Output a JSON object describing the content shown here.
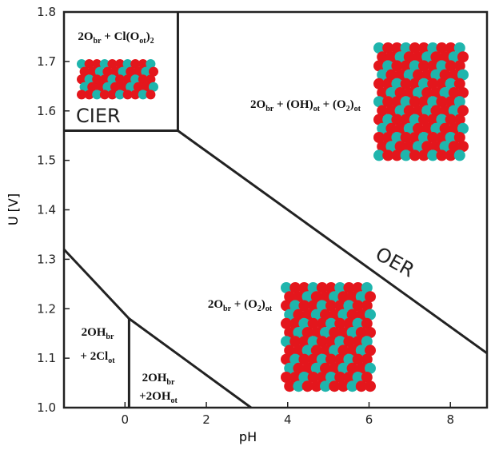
{
  "chart_data": {
    "type": "phase-diagram",
    "xlabel": "pH",
    "ylabel": "U [V]",
    "xlim": [
      -1.5,
      8.9
    ],
    "ylim": [
      1.0,
      1.8
    ],
    "xticks": [
      0,
      2,
      4,
      6,
      8
    ],
    "yticks": [
      {
        "value": 1,
        "label": "1.0"
      },
      1.1,
      1.2,
      1.3,
      1.4,
      1.5,
      1.6,
      1.7,
      1.8
    ],
    "line_color": "#222222",
    "boundaries": [
      {
        "x": [
          -1.5,
          1.3,
          1.3
        ],
        "values": [
          1.56,
          1.56,
          1.8
        ]
      },
      {
        "x": [
          1.3,
          8.9
        ],
        "values": [
          1.56,
          1.11
        ]
      },
      {
        "x": [
          -1.5,
          0.1,
          3.1
        ],
        "values": [
          1.32,
          1.18,
          1.0
        ]
      },
      {
        "x": [
          0.1,
          0.1
        ],
        "values": [
          1.0,
          1.18
        ]
      }
    ],
    "annotations": [
      "CIER",
      "OER"
    ],
    "regions": [
      {
        "lines": [
          [
            {
              "text": "2O"
            },
            {
              "text": "br",
              "sub": true
            },
            {
              "text": " + Cl(O"
            },
            {
              "text": "ot",
              "sub": true
            },
            {
              "text": ")"
            },
            {
              "text": "2",
              "sub": true
            }
          ]
        ]
      },
      {
        "lines": [
          [
            {
              "text": "2O"
            },
            {
              "text": "br",
              "sub": true
            },
            {
              "text": " + (OH)"
            },
            {
              "text": "ot",
              "sub": true
            },
            {
              "text": " + (O"
            },
            {
              "text": "2",
              "sub": true
            },
            {
              "text": ")"
            },
            {
              "text": "ot",
              "sub": true
            }
          ]
        ]
      },
      {
        "lines": [
          [
            {
              "text": "2O"
            },
            {
              "text": "br",
              "sub": true
            },
            {
              "text": " + (O"
            },
            {
              "text": "2",
              "sub": true
            },
            {
              "text": ")"
            },
            {
              "text": "ot",
              "sub": true
            }
          ]
        ]
      },
      {
        "lines": [
          [
            {
              "text": "2OH"
            },
            {
              "text": "br",
              "sub": true
            }
          ],
          [
            {
              "text": "+ 2Cl"
            },
            {
              "text": "ot",
              "sub": true
            }
          ]
        ]
      },
      {
        "lines": [
          [
            {
              "text": "2OH"
            },
            {
              "text": "br",
              "sub": true
            }
          ],
          [
            {
              "text": "+2OH"
            },
            {
              "text": "ot",
              "sub": true
            }
          ]
        ]
      }
    ]
  }
}
